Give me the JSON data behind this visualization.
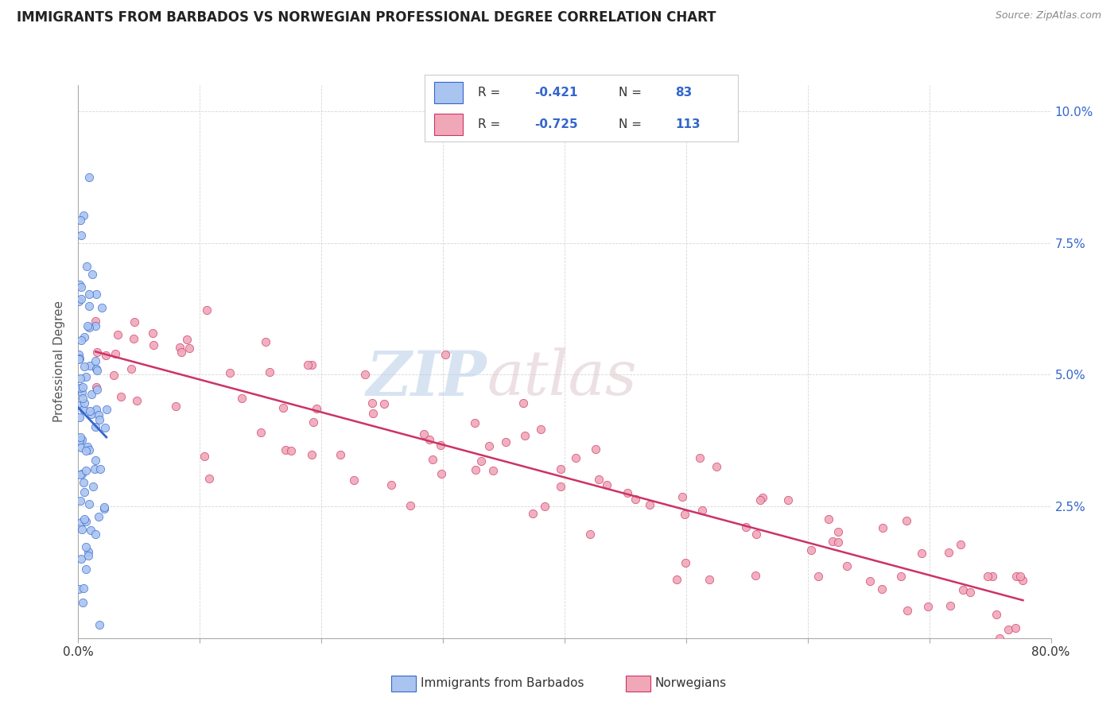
{
  "title": "IMMIGRANTS FROM BARBADOS VS NORWEGIAN PROFESSIONAL DEGREE CORRELATION CHART",
  "source": "Source: ZipAtlas.com",
  "ylabel": "Professional Degree",
  "legend_label1": "Immigrants from Barbados",
  "legend_label2": "Norwegians",
  "r1": -0.421,
  "n1": 83,
  "r2": -0.725,
  "n2": 113,
  "color1": "#aac4f0",
  "color2": "#f0a8b8",
  "line_color1": "#3366cc",
  "line_color2": "#cc3366",
  "xlim": [
    0.0,
    0.8
  ],
  "ylim": [
    0.0,
    0.105
  ],
  "ytick_vals": [
    0.0,
    0.025,
    0.05,
    0.075,
    0.1
  ],
  "ytick_labels_right": [
    "",
    "2.5%",
    "5.0%",
    "7.5%",
    "10.0%"
  ],
  "xtick_vals": [
    0.0,
    0.1,
    0.2,
    0.3,
    0.4,
    0.5,
    0.6,
    0.7,
    0.8
  ],
  "xtick_labels": [
    "0.0%",
    "",
    "",
    "",
    "",
    "",
    "",
    "",
    "80.0%"
  ],
  "watermark_zip": "ZIP",
  "watermark_atlas": "atlas"
}
